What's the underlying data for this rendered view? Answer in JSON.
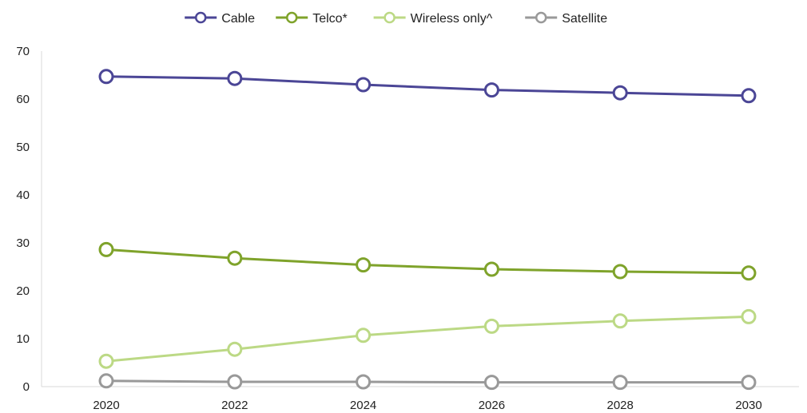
{
  "chart_data": {
    "type": "line",
    "title": "",
    "xlabel": "",
    "ylabel": "",
    "x": [
      "2020",
      "2022",
      "2024",
      "2026",
      "2028",
      "2030"
    ],
    "ylim": [
      0,
      70
    ],
    "yticks": [
      0,
      10,
      20,
      30,
      40,
      50,
      60,
      70
    ],
    "grid": false,
    "legend": "top-center",
    "markers": "hollow-circle",
    "series": [
      {
        "name": "Cable",
        "color": "#4b4696",
        "values": [
          64.7,
          64.3,
          63.0,
          61.9,
          61.3,
          60.7
        ]
      },
      {
        "name": "Telco*",
        "color": "#7fa32b",
        "values": [
          28.6,
          26.8,
          25.4,
          24.5,
          24.0,
          23.7
        ]
      },
      {
        "name": "Wireless only^",
        "color": "#bcd985",
        "values": [
          5.3,
          7.8,
          10.7,
          12.6,
          13.7,
          14.6
        ]
      },
      {
        "name": "Satellite",
        "color": "#999999",
        "values": [
          1.2,
          1.0,
          1.0,
          0.9,
          0.9,
          0.9
        ]
      }
    ]
  }
}
